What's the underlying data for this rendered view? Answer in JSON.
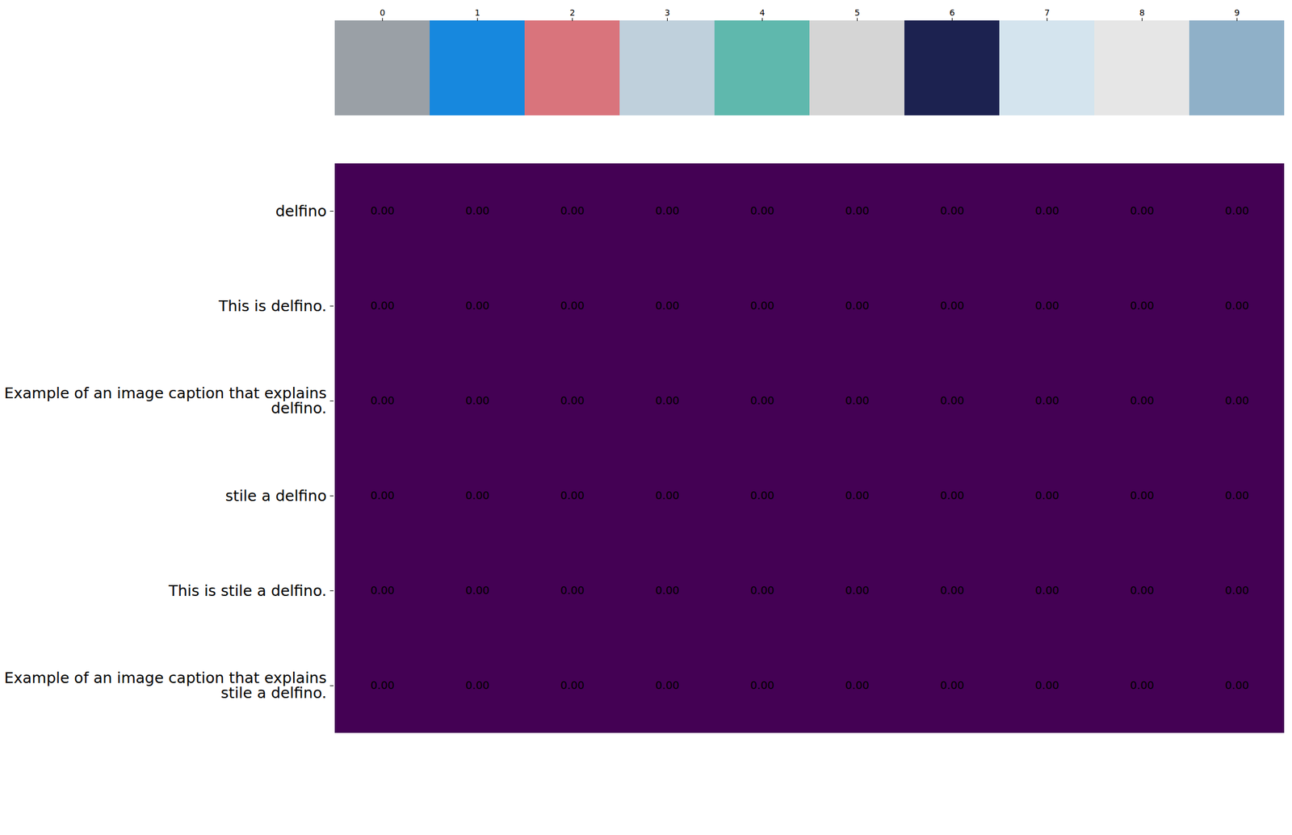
{
  "chart_data": {
    "type": "heatmap",
    "x": [
      0,
      1,
      2,
      3,
      4,
      5,
      6,
      7,
      8,
      9
    ],
    "y": [
      "delfino",
      "This is delfino.",
      "Example of an image caption that explains delfino.",
      "stile a delfino",
      "This is stile a delfino.",
      "Example of an image caption that explains stile a delfino."
    ],
    "values": [
      [
        0,
        0,
        0,
        0,
        0,
        0,
        0,
        0,
        0,
        0
      ],
      [
        0,
        0,
        0,
        0,
        0,
        0,
        0,
        0,
        0,
        0
      ],
      [
        0,
        0,
        0,
        0,
        0,
        0,
        0,
        0,
        0,
        0
      ],
      [
        0,
        0,
        0,
        0,
        0,
        0,
        0,
        0,
        0,
        0
      ],
      [
        0,
        0,
        0,
        0,
        0,
        0,
        0,
        0,
        0,
        0
      ],
      [
        0,
        0,
        0,
        0,
        0,
        0,
        0,
        0,
        0,
        0
      ]
    ],
    "value_labels": [
      [
        "0.00",
        "0.00",
        "0.00",
        "0.00",
        "0.00",
        "0.00",
        "0.00",
        "0.00",
        "0.00",
        "0.00"
      ],
      [
        "0.00",
        "0.00",
        "0.00",
        "0.00",
        "0.00",
        "0.00",
        "0.00",
        "0.00",
        "0.00",
        "0.00"
      ],
      [
        "0.00",
        "0.00",
        "0.00",
        "0.00",
        "0.00",
        "0.00",
        "0.00",
        "0.00",
        "0.00",
        "0.00"
      ],
      [
        "0.00",
        "0.00",
        "0.00",
        "0.00",
        "0.00",
        "0.00",
        "0.00",
        "0.00",
        "0.00",
        "0.00"
      ],
      [
        "0.00",
        "0.00",
        "0.00",
        "0.00",
        "0.00",
        "0.00",
        "0.00",
        "0.00",
        "0.00",
        "0.00"
      ],
      [
        "0.00",
        "0.00",
        "0.00",
        "0.00",
        "0.00",
        "0.00",
        "0.00",
        "0.00",
        "0.00",
        "0.00"
      ]
    ],
    "color": "#440154",
    "data_labels": true
  }
}
